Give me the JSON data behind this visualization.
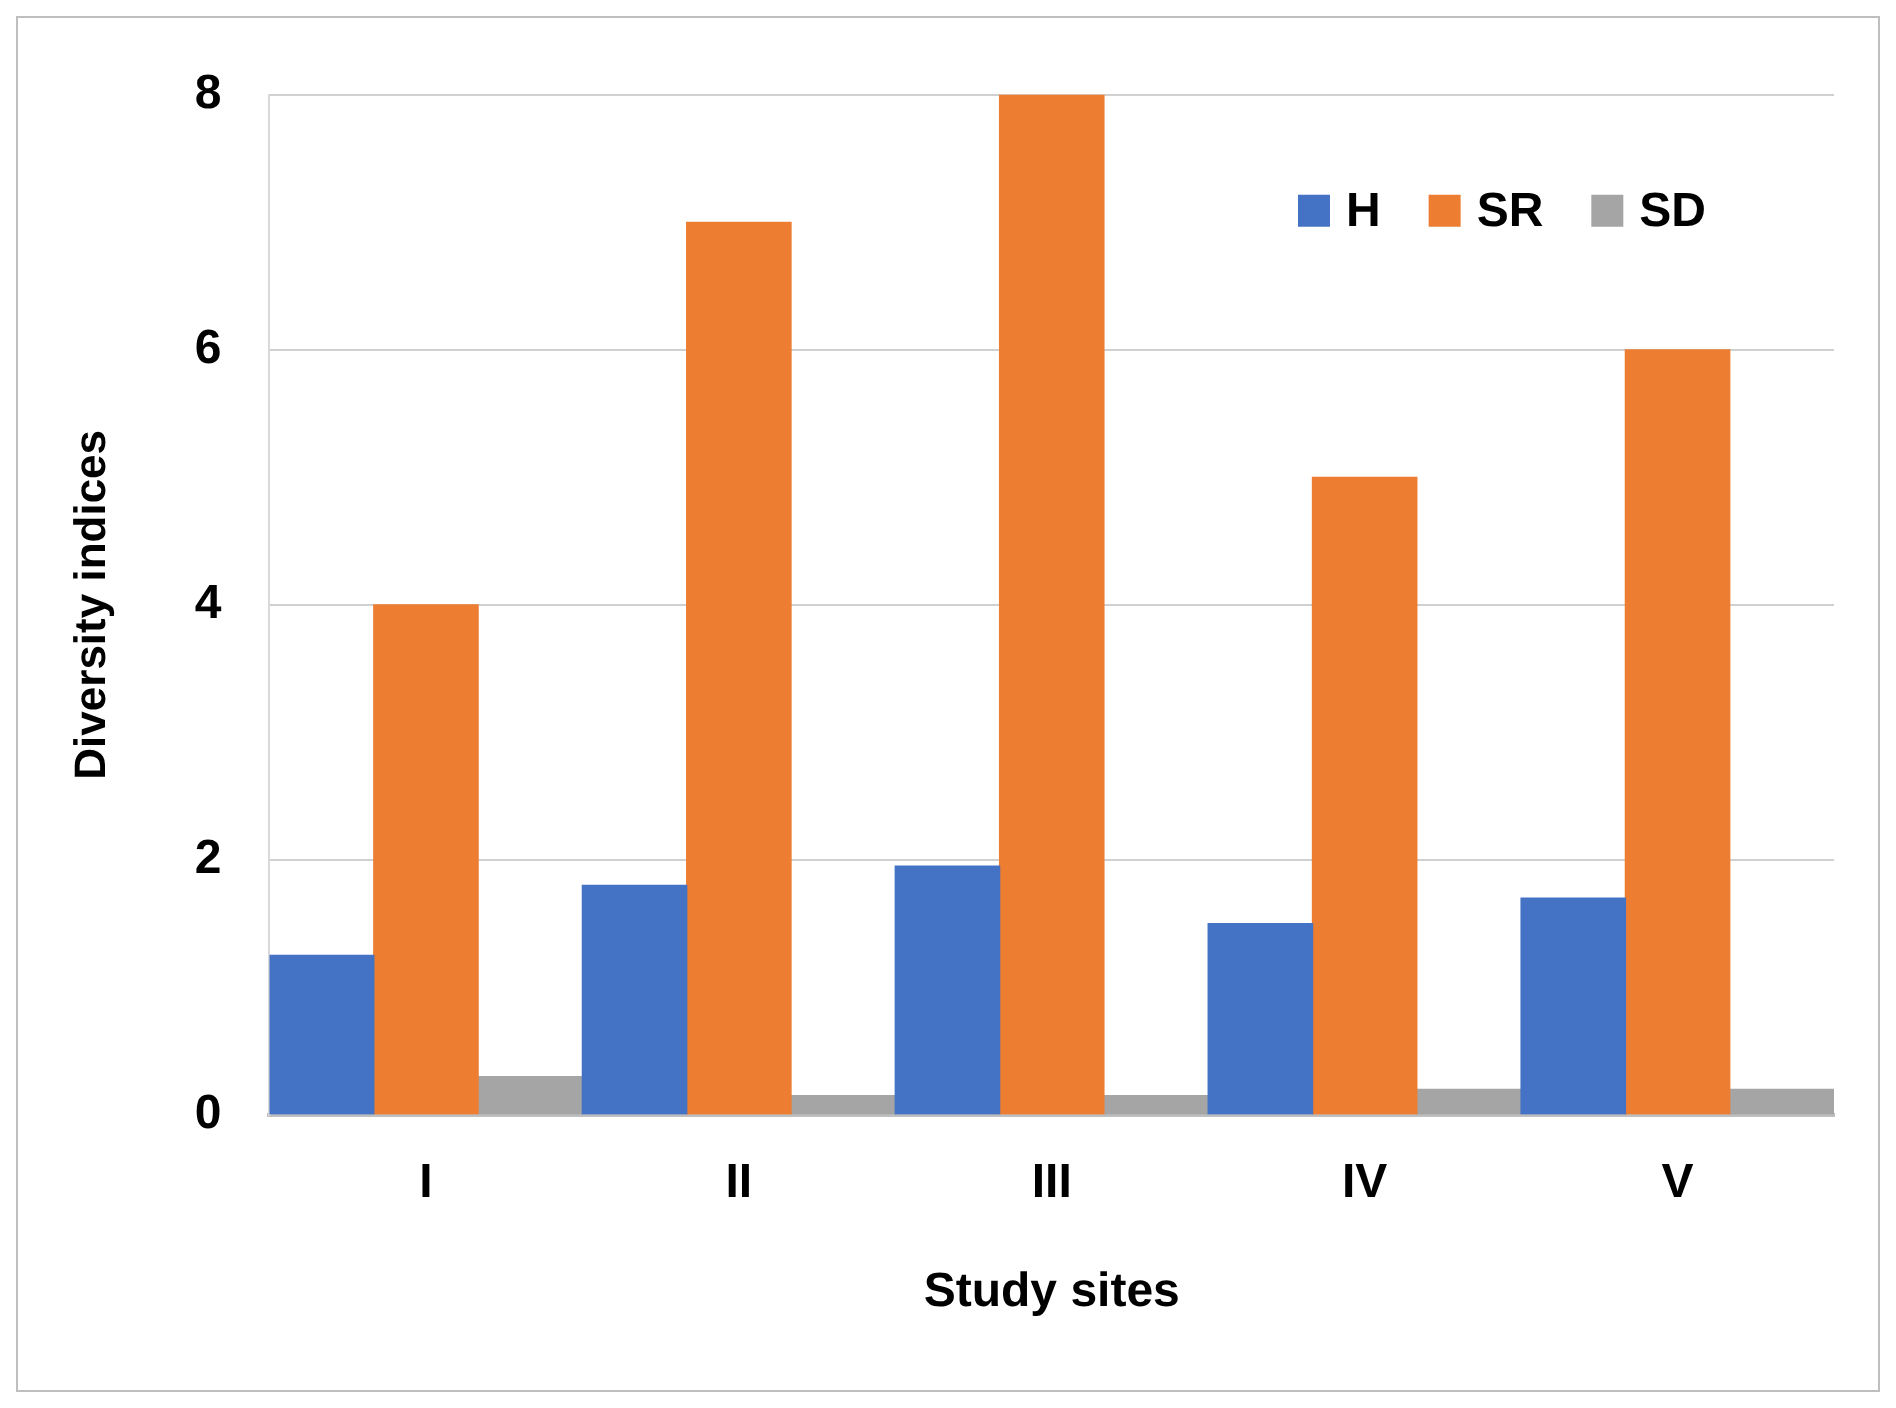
{
  "chart_data": {
    "type": "bar",
    "xlabel": "Study sites",
    "ylabel": "Diversity indices",
    "categories": [
      "I",
      "II",
      "III",
      "IV",
      "V"
    ],
    "series": [
      {
        "name": "H",
        "color": "#4472c4",
        "values": [
          1.25,
          1.8,
          1.95,
          1.5,
          1.7
        ]
      },
      {
        "name": "SR",
        "color": "#ed7d31",
        "values": [
          4,
          7,
          8,
          5,
          6
        ]
      },
      {
        "name": "SD",
        "color": "#a5a5a5",
        "values": [
          0.3,
          0.15,
          0.15,
          0.2,
          0.2
        ]
      }
    ],
    "ylim": [
      0,
      8
    ],
    "yticks": [
      0,
      2,
      4,
      6,
      8
    ],
    "grid": "y",
    "legend": "top right"
  }
}
